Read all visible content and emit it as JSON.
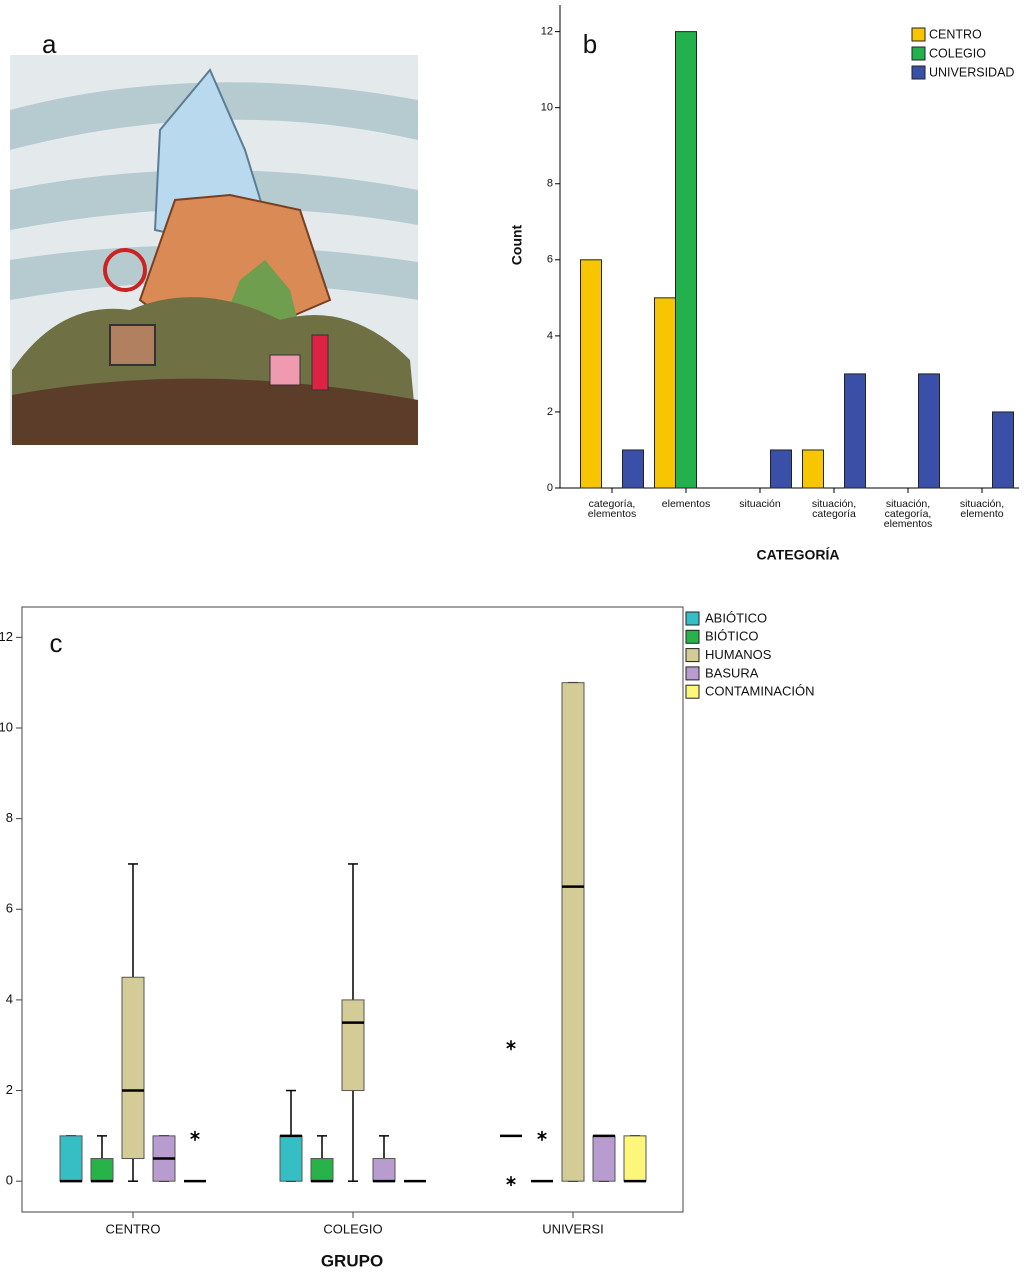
{
  "illustration": {
    "label": "a"
  },
  "chart_data": [
    {
      "type": "bar",
      "panel_label": "b",
      "x_label": "CATEGORÍA",
      "y_label": "Count",
      "categories": [
        "categoría, elementos",
        "elementos",
        "situación",
        "situación, categoría",
        "situación, categoría, elementos",
        "situación, elemento"
      ],
      "series": [
        {
          "name": "CENTRO",
          "color": "#f7c600",
          "values": [
            6,
            5,
            0,
            1,
            0,
            0
          ]
        },
        {
          "name": "COLEGIO",
          "color": "#22b14c",
          "values": [
            0,
            12,
            0,
            0,
            0,
            0
          ]
        },
        {
          "name": "UNIVERSIDAD",
          "color": "#3a50a8",
          "values": [
            1,
            0,
            1,
            3,
            3,
            2
          ]
        }
      ],
      "ylim": [
        0,
        12.7
      ],
      "yticks": [
        0,
        2,
        4,
        6,
        8,
        10,
        12
      ],
      "legend": "top-right"
    },
    {
      "type": "box",
      "panel_label": "c",
      "x_label": "GRUPO",
      "categories": [
        "CENTRO",
        "COLEGIO",
        "UNIVERSI"
      ],
      "series": [
        {
          "name": "ABIÓTICO",
          "color": "#35bfc4",
          "boxes": [
            {
              "min": 0,
              "q1": 0,
              "median": 0,
              "q3": 1,
              "max": 1
            },
            {
              "min": 0,
              "q1": 0,
              "median": 1,
              "q3": 1,
              "max": 2
            },
            {
              "min": 1,
              "q1": 1,
              "median": 1,
              "q3": 1,
              "max": 1,
              "outliers": [
                3,
                0
              ]
            }
          ]
        },
        {
          "name": "BIÓTICO",
          "color": "#27b24a",
          "boxes": [
            {
              "min": 0,
              "q1": 0,
              "median": 0,
              "q3": 0.5,
              "max": 1
            },
            {
              "min": 0,
              "q1": 0,
              "median": 0,
              "q3": 0.5,
              "max": 1
            },
            {
              "min": 0,
              "q1": 0,
              "median": 0,
              "q3": 0,
              "max": 0,
              "outliers": [
                1
              ]
            }
          ]
        },
        {
          "name": "HUMANOS",
          "color": "#d4cc96",
          "boxes": [
            {
              "min": 0,
              "q1": 0.5,
              "median": 2,
              "q3": 4.5,
              "max": 7
            },
            {
              "min": 0,
              "q1": 2,
              "median": 3.5,
              "q3": 4,
              "max": 7
            },
            {
              "min": 0,
              "q1": 0,
              "median": 6.5,
              "q3": 11,
              "max": 11
            }
          ]
        },
        {
          "name": "BASURA",
          "color": "#b89cd0",
          "boxes": [
            {
              "min": 0,
              "q1": 0,
              "median": 0.5,
              "q3": 1,
              "max": 1
            },
            {
              "min": 0,
              "q1": 0,
              "median": 0,
              "q3": 0.5,
              "max": 1
            },
            {
              "min": 0,
              "q1": 0,
              "median": 1,
              "q3": 1,
              "max": 1
            }
          ]
        },
        {
          "name": "CONTAMINACIÓN",
          "color": "#fcf77a",
          "boxes": [
            {
              "min": 0,
              "q1": 0,
              "median": 0,
              "q3": 0,
              "max": 0,
              "outliers": [
                1
              ]
            },
            {
              "min": 0,
              "q1": 0,
              "median": 0,
              "q3": 0,
              "max": 0
            },
            {
              "min": 0,
              "q1": 0,
              "median": 0,
              "q3": 1,
              "max": 1
            }
          ]
        }
      ],
      "ylim": [
        -0.68,
        12.67
      ],
      "yticks": [
        0,
        2,
        4,
        6,
        8,
        10,
        12
      ],
      "legend": "outside-right"
    }
  ]
}
